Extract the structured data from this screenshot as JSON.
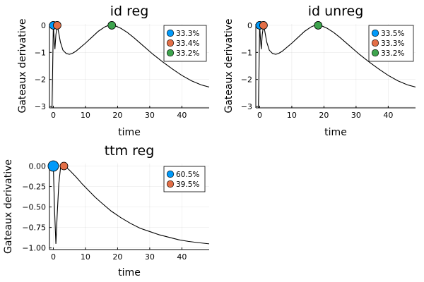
{
  "chart_data": [
    {
      "type": "line",
      "title": "id reg",
      "xlabel": "time",
      "ylabel": "Gateaux derivative",
      "xlim": [
        -1.2,
        48.5
      ],
      "ylim": [
        -3.05,
        0.05
      ],
      "xticks": [
        0,
        10,
        20,
        30,
        40
      ],
      "yticks": [
        0,
        -1,
        -2,
        -3
      ],
      "ytick_labels": [
        "0",
        "−1",
        "−2",
        "−3"
      ],
      "grid": true,
      "legend_position": "top-right",
      "curve": {
        "x": [
          -0.4,
          0,
          0.25,
          0.5,
          0.8,
          1.2,
          1.6,
          2.2,
          3,
          4,
          5,
          6,
          7,
          8,
          10,
          12,
          14,
          16,
          17,
          18.2,
          19.5,
          21,
          23,
          25,
          28,
          31,
          34,
          37,
          40,
          43,
          46,
          48.5
        ],
        "y": [
          -3.05,
          0,
          -0.5,
          -0.88,
          -0.35,
          0,
          -0.22,
          -0.62,
          -0.92,
          -1.04,
          -1.07,
          -1.03,
          -0.96,
          -0.86,
          -0.66,
          -0.44,
          -0.22,
          -0.06,
          -0.01,
          0,
          -0.03,
          -0.11,
          -0.26,
          -0.45,
          -0.76,
          -1.07,
          -1.35,
          -1.61,
          -1.85,
          -2.05,
          -2.2,
          -2.28
        ]
      },
      "points": [
        {
          "label": "33.3%",
          "x": 0,
          "y": 0,
          "color": "#009AFA"
        },
        {
          "label": "33.4%",
          "x": 1.2,
          "y": 0,
          "color": "#E36F47"
        },
        {
          "label": "33.2%",
          "x": 18.2,
          "y": 0,
          "color": "#3EA44E"
        }
      ]
    },
    {
      "type": "line",
      "title": "id unreg",
      "xlabel": "time",
      "ylabel": "Gateaux derivative",
      "xlim": [
        -1.2,
        48.5
      ],
      "ylim": [
        -3.05,
        0.05
      ],
      "xticks": [
        0,
        10,
        20,
        30,
        40
      ],
      "yticks": [
        0,
        -1,
        -2,
        -3
      ],
      "ytick_labels": [
        "0",
        "−1",
        "−2",
        "−3"
      ],
      "grid": true,
      "legend_position": "top-right",
      "curve": {
        "x": [
          -0.4,
          0,
          0.25,
          0.5,
          0.8,
          1.2,
          1.6,
          2.2,
          3,
          4,
          5,
          6,
          7,
          8,
          10,
          12,
          14,
          16,
          17,
          18.2,
          19.5,
          21,
          23,
          25,
          28,
          31,
          34,
          37,
          40,
          43,
          46,
          48.5
        ],
        "y": [
          -3.05,
          0,
          -0.5,
          -0.88,
          -0.35,
          0,
          -0.22,
          -0.62,
          -0.92,
          -1.04,
          -1.07,
          -1.03,
          -0.96,
          -0.86,
          -0.66,
          -0.44,
          -0.22,
          -0.06,
          -0.01,
          0,
          -0.03,
          -0.11,
          -0.26,
          -0.45,
          -0.76,
          -1.07,
          -1.35,
          -1.61,
          -1.85,
          -2.05,
          -2.2,
          -2.28
        ]
      },
      "points": [
        {
          "label": "33.5%",
          "x": 0,
          "y": 0,
          "color": "#009AFA"
        },
        {
          "label": "33.3%",
          "x": 1.2,
          "y": 0,
          "color": "#E36F47"
        },
        {
          "label": "33.2%",
          "x": 18.2,
          "y": 0,
          "color": "#3EA44E"
        }
      ]
    },
    {
      "type": "line",
      "title": "ttm reg",
      "xlabel": "time",
      "ylabel": "Gateaux derivative",
      "xlim": [
        -1.2,
        48.5
      ],
      "ylim": [
        -1.02,
        0.03
      ],
      "xticks": [
        0,
        10,
        20,
        30,
        40
      ],
      "yticks": [
        0,
        -0.25,
        -0.5,
        -0.75,
        -1
      ],
      "ytick_labels": [
        "0.00",
        "−0.25",
        "−0.50",
        "−0.75",
        "−1.00"
      ],
      "grid": true,
      "legend_position": "top-right",
      "curve": {
        "x": [
          0,
          0.4,
          0.8,
          1.2,
          1.7,
          2.3,
          3,
          3.6,
          5,
          7,
          9,
          11,
          13,
          15,
          18,
          21,
          24,
          27,
          30,
          33,
          36,
          39,
          42,
          45,
          48.5
        ],
        "y": [
          0,
          -0.55,
          -0.95,
          -0.6,
          -0.22,
          0,
          0,
          0,
          -0.05,
          -0.13,
          -0.22,
          -0.3,
          -0.38,
          -0.45,
          -0.55,
          -0.63,
          -0.7,
          -0.76,
          -0.8,
          -0.84,
          -0.87,
          -0.9,
          -0.92,
          -0.935,
          -0.95
        ]
      },
      "points": [
        {
          "label": "60.5%",
          "x": 0,
          "y": 0,
          "color": "#009AFA",
          "large": true
        },
        {
          "label": "39.5%",
          "x": 3.3,
          "y": 0,
          "color": "#E36F47"
        }
      ]
    }
  ]
}
